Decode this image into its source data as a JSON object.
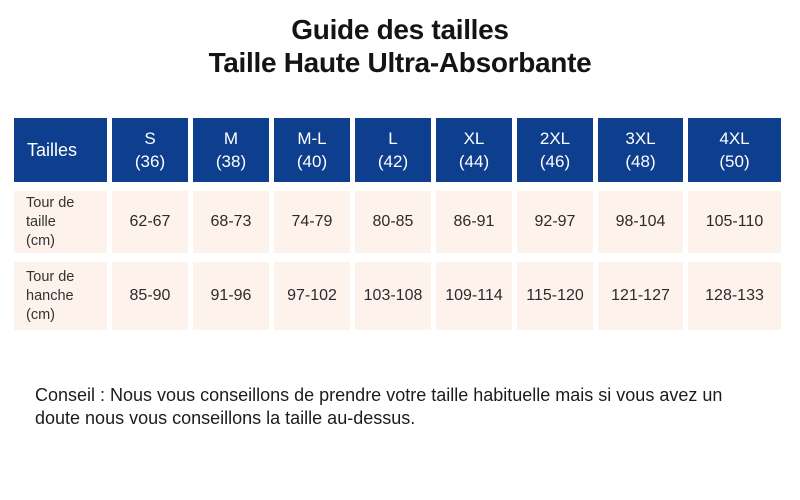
{
  "title": {
    "line1": "Guide des tailles",
    "line2": "Taille Haute Ultra-Absorbante"
  },
  "table": {
    "corner_label": "Tailles",
    "columns": [
      {
        "size": "S",
        "eu": "(36)"
      },
      {
        "size": "M",
        "eu": "(38)"
      },
      {
        "size": "M-L",
        "eu": "(40)"
      },
      {
        "size": "L",
        "eu": "(42)"
      },
      {
        "size": "XL",
        "eu": "(44)"
      },
      {
        "size": "2XL",
        "eu": "(46)"
      },
      {
        "size": "3XL",
        "eu": "(48)"
      },
      {
        "size": "4XL",
        "eu": "(50)"
      }
    ],
    "rows": [
      {
        "label": "Tour de taille (cm)",
        "label_lines": [
          "Tour de",
          "taille",
          "(cm)"
        ],
        "values": [
          "62-67",
          "68-73",
          "74-79",
          "80-85",
          "86-91",
          "92-97",
          "98-104",
          "105-110"
        ]
      },
      {
        "label": "Tour de hanche (cm)",
        "label_lines": [
          "Tour de",
          "hanche",
          "(cm)"
        ],
        "values": [
          "85-90",
          "91-96",
          "97-102",
          "103-108",
          "109-114",
          "115-120",
          "121-127",
          "128-133"
        ]
      }
    ]
  },
  "advice": "Conseil : Nous vous conseillons de prendre votre taille habituelle mais si vous avez un doute nous vous conseillons la taille au-dessus.",
  "colors": {
    "header_bg": "#0e3e8e",
    "header_text": "#ffffff",
    "row_bg": "#fdf3ec",
    "title_text": "#141414",
    "body_text": "#2b2b2b",
    "advice_text": "#1c1c1c"
  }
}
